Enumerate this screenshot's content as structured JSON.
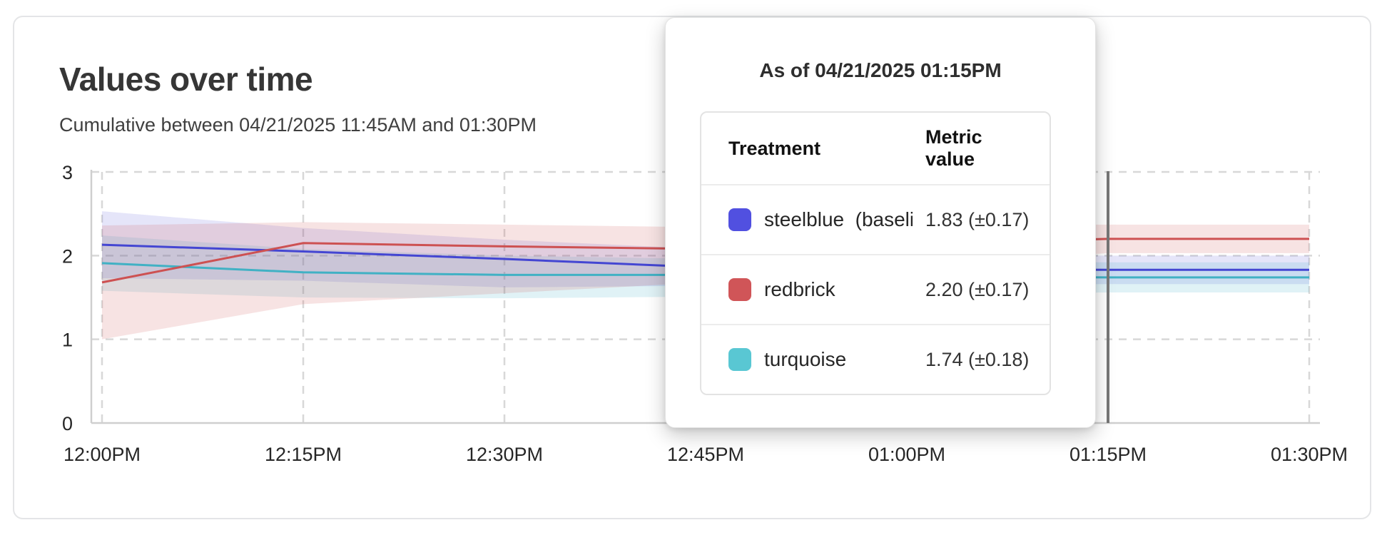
{
  "page": {
    "title": "Values over time",
    "subtitle": "Cumulative between 04/21/2025 11:45AM and 01:30PM"
  },
  "tooltip": {
    "header": "As of 04/21/2025 01:15PM",
    "columns": {
      "treatment": "Treatment",
      "metric": "Metric value"
    },
    "rows": [
      {
        "label": "steelblue  (baseli",
        "value": "1.83 (±0.17)",
        "color": "#5150e0"
      },
      {
        "label": "redbrick",
        "value": "2.20 (±0.17)",
        "color": "#d05558"
      },
      {
        "label": "turquoise",
        "value": "1.74 (±0.18)",
        "color": "#59c7d3"
      }
    ]
  },
  "chart_data": {
    "type": "line",
    "title": "Values over time",
    "subtitle": "Cumulative between 04/21/2025 11:45AM and 01:30PM",
    "xlabel": "",
    "ylabel": "",
    "x_tick_labels": [
      "12:00PM",
      "12:15PM",
      "12:30PM",
      "12:45PM",
      "01:00PM",
      "01:15PM",
      "01:30PM"
    ],
    "y_ticks": [
      0,
      1,
      2,
      3
    ],
    "ylim": [
      0,
      3
    ],
    "grid": "dashed",
    "legend_position": "tooltip",
    "hover_index": 5,
    "hover_label": "01:15PM",
    "series": [
      {
        "name": "steelblue (baseline)",
        "color": "#4446d2",
        "band_color": "rgba(68,70,210,0.14)",
        "values": [
          2.13,
          2.05,
          1.96,
          1.86,
          1.84,
          1.83,
          1.83
        ],
        "upper": [
          2.53,
          2.33,
          2.19,
          2.08,
          2.02,
          2.0,
          2.0
        ],
        "lower": [
          1.73,
          1.7,
          1.62,
          1.64,
          1.65,
          1.66,
          1.66
        ]
      },
      {
        "name": "redbrick",
        "color": "#cd5152",
        "band_color": "rgba(205,81,82,0.16)",
        "values": [
          1.68,
          2.15,
          2.11,
          2.08,
          2.14,
          2.2,
          2.2
        ],
        "upper": [
          2.36,
          2.4,
          2.37,
          2.34,
          2.36,
          2.37,
          2.37
        ],
        "lower": [
          1.0,
          1.42,
          1.55,
          1.68,
          1.88,
          2.03,
          2.03
        ]
      },
      {
        "name": "turquoise",
        "color": "#41b1c4",
        "band_color": "rgba(65,177,196,0.16)",
        "values": [
          1.91,
          1.8,
          1.77,
          1.77,
          1.75,
          1.74,
          1.74
        ],
        "upper": [
          2.24,
          2.08,
          2.0,
          1.96,
          1.93,
          1.92,
          1.92
        ],
        "lower": [
          1.58,
          1.5,
          1.49,
          1.51,
          1.54,
          1.56,
          1.56
        ]
      }
    ]
  }
}
